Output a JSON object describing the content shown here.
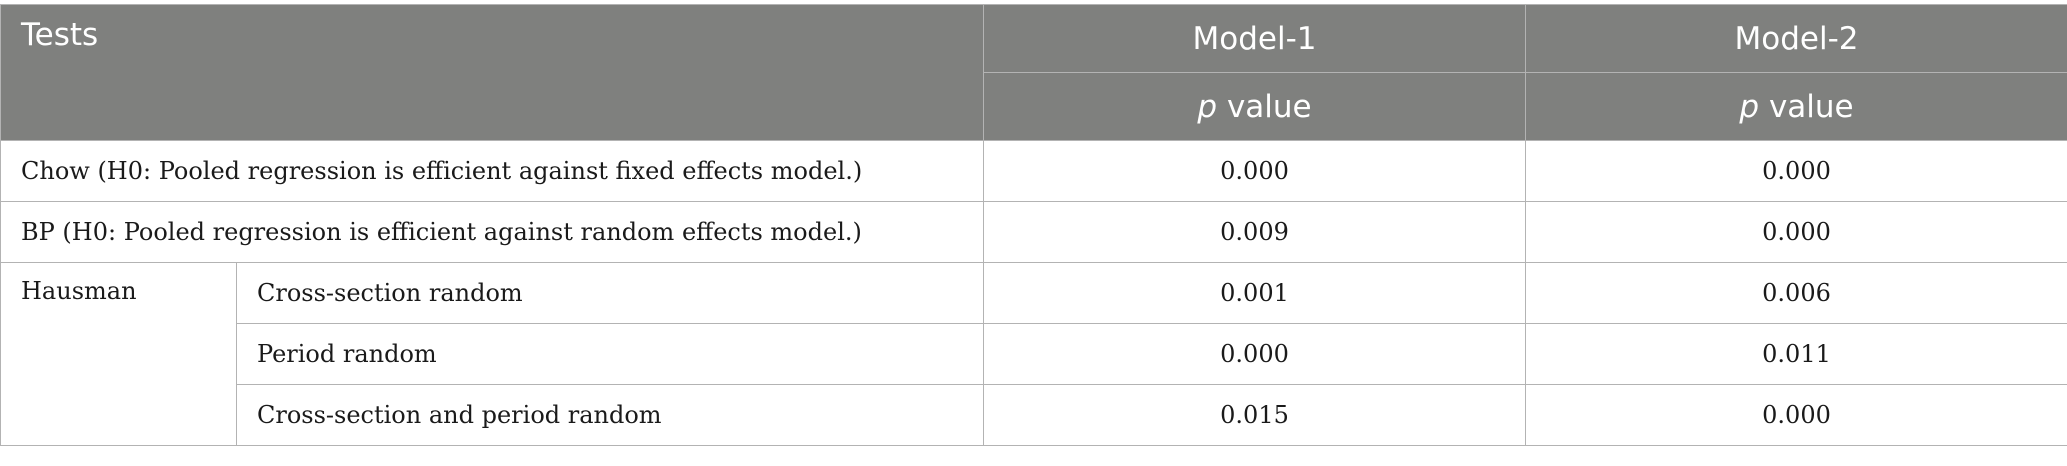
{
  "header": {
    "tests_label": "Tests",
    "models": [
      "Model-1",
      "Model-2"
    ],
    "pvalue_italic": "p",
    "pvalue_rest": " value"
  },
  "rows": {
    "chow": {
      "label": "Chow (H0: Pooled regression is efficient against fixed effects model.)",
      "model1": "0.000",
      "model2": "0.000"
    },
    "bp": {
      "label": "BP (H0: Pooled regression is efficient against random effects model.)",
      "model1": "0.009",
      "model2": "0.000"
    },
    "hausman": {
      "label": "Hausman",
      "sub": [
        {
          "label": "Cross-section random",
          "model1": "0.001",
          "model2": "0.006"
        },
        {
          "label": "Period random",
          "model1": "0.000",
          "model2": "0.011"
        },
        {
          "label": "Cross-section and period random",
          "model1": "0.015",
          "model2": "0.000"
        }
      ]
    }
  }
}
